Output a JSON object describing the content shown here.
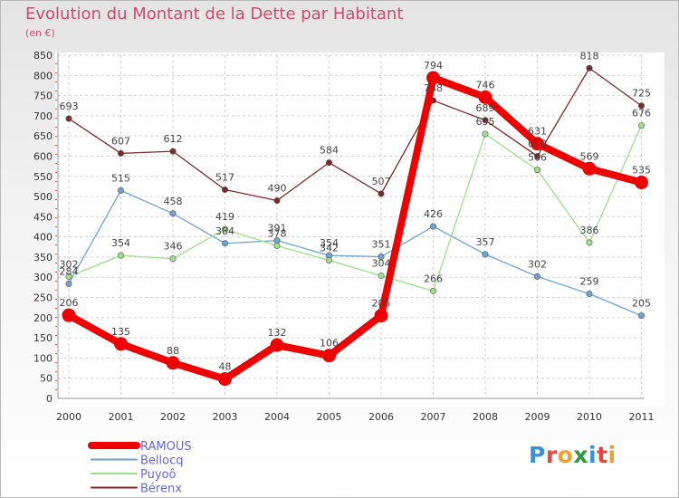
{
  "title": "Evolution du Montant de la Dette par Habitant",
  "subtitle": "(en €)",
  "logo": {
    "letters": [
      "P",
      "r",
      "o",
      "x",
      "i",
      "t",
      "i"
    ],
    "colors": [
      "#3a8fd6",
      "#e3473f",
      "#f0a030",
      "#2f9a3e",
      "#3a8fd6",
      "#e3473f",
      "#f0a030"
    ]
  },
  "chart_data": {
    "type": "line",
    "categories": [
      "2000",
      "2001",
      "2002",
      "2003",
      "2004",
      "2005",
      "2006",
      "2007",
      "2008",
      "2009",
      "2010",
      "2011"
    ],
    "ylim": [
      0,
      850
    ],
    "yticks": [
      0,
      50,
      100,
      150,
      200,
      250,
      300,
      350,
      400,
      450,
      500,
      550,
      600,
      650,
      700,
      750,
      800,
      850
    ],
    "grid": true,
    "legend_position": "bottom-left",
    "series": [
      {
        "name": "RAMOUS",
        "values": [
          206,
          135,
          88,
          48,
          132,
          106,
          205,
          794,
          746,
          631,
          569,
          535
        ],
        "color": "#ee0000",
        "legend_color": "#6666ee",
        "thick": true
      },
      {
        "name": "Bellocq",
        "values": [
          284,
          515,
          458,
          384,
          391,
          354,
          351,
          426,
          357,
          302,
          259,
          205
        ],
        "color": "#6fa3d6",
        "legend_color": "#6666ee",
        "thick": false
      },
      {
        "name": "Puyoô",
        "values": [
          302,
          354,
          346,
          419,
          378,
          342,
          304,
          266,
          655,
          566,
          386,
          676
        ],
        "color": "#9ee08a",
        "legend_color": "#6666ee",
        "thick": false
      },
      {
        "name": "Bérenx",
        "values": [
          693,
          607,
          612,
          517,
          490,
          584,
          507,
          738,
          689,
          600,
          818,
          725
        ],
        "color": "#7a2a2a",
        "legend_color": "#6666ee",
        "thick": false
      }
    ]
  }
}
